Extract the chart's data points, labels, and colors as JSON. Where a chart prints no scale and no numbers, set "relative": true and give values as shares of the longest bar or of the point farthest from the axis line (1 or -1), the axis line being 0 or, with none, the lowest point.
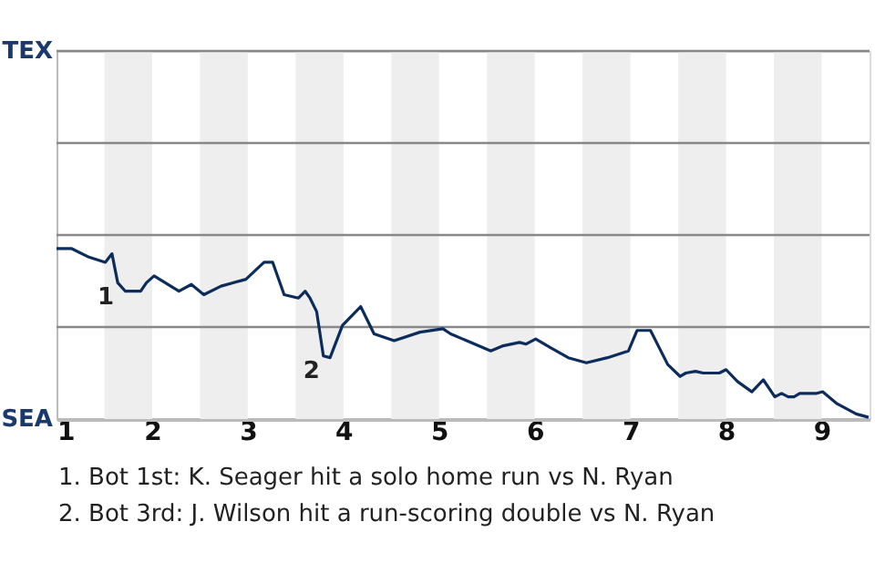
{
  "chart_data": {
    "type": "line",
    "relative": true,
    "x": [
      1.0,
      1.16,
      1.34,
      1.51,
      1.58,
      1.64,
      1.72,
      1.88,
      1.94,
      2.02,
      2.28,
      2.41,
      2.54,
      2.72,
      2.98,
      3.17,
      3.26,
      3.38,
      3.53,
      3.6,
      3.65,
      3.72,
      3.79,
      3.86,
      3.99,
      4.18,
      4.32,
      4.53,
      4.8,
      5.04,
      5.12,
      5.54,
      5.67,
      5.84,
      5.91,
      6.01,
      6.16,
      6.35,
      6.54,
      6.76,
      6.98,
      7.07,
      7.21,
      7.39,
      7.52,
      7.58,
      7.68,
      7.76,
      7.93,
      8.0,
      8.12,
      8.27,
      8.39,
      8.51,
      8.58,
      8.65,
      8.71,
      8.77,
      8.94,
      9.01,
      9.16,
      9.36,
      9.49
    ],
    "series": [
      {
        "color": "#0c2c5c",
        "values": [
          1,
          1,
          0.95,
          0.92,
          0.97,
          0.8,
          0.75,
          0.75,
          0.8,
          0.84,
          0.75,
          0.79,
          0.73,
          0.78,
          0.82,
          0.92,
          0.92,
          0.73,
          0.71,
          0.75,
          0.71,
          0.63,
          0.37,
          0.36,
          0.55,
          0.66,
          0.5,
          0.46,
          0.51,
          0.53,
          0.5,
          0.4,
          0.43,
          0.45,
          0.44,
          0.47,
          0.42,
          0.36,
          0.33,
          0.36,
          0.4,
          0.52,
          0.52,
          0.32,
          0.25,
          0.27,
          0.28,
          0.27,
          0.27,
          0.29,
          0.22,
          0.16,
          0.23,
          0.13,
          0.15,
          0.13,
          0.13,
          0.15,
          0.15,
          0.16,
          0.09,
          0.03,
          0.01
        ]
      }
    ],
    "xlim": [
      1,
      9.5
    ],
    "xticks": [
      1,
      2,
      3,
      4,
      5,
      6,
      7,
      8,
      9
    ],
    "ref_lines": [
      {
        "axis": "y",
        "value": 0.54,
        "color": "#888888"
      },
      {
        "axis": "y",
        "value": 1.08,
        "color": "#888888"
      },
      {
        "axis": "y",
        "value": 1.62,
        "color": "#888888"
      },
      {
        "axis": "y",
        "value": 2.16,
        "color": "#888888"
      }
    ],
    "marker": "none",
    "line_style": "solid",
    "bands": [
      {
        "axis": "x",
        "from": 1.5,
        "to": 2,
        "color": "#eeeeee"
      },
      {
        "axis": "x",
        "from": 2.5,
        "to": 3,
        "color": "#eeeeee"
      },
      {
        "axis": "x",
        "from": 3.5,
        "to": 4,
        "color": "#eeeeee"
      },
      {
        "axis": "x",
        "from": 4.5,
        "to": 5,
        "color": "#eeeeee"
      },
      {
        "axis": "x",
        "from": 5.5,
        "to": 6,
        "color": "#eeeeee"
      },
      {
        "axis": "x",
        "from": 6.5,
        "to": 7,
        "color": "#eeeeee"
      },
      {
        "axis": "x",
        "from": 7.5,
        "to": 8,
        "color": "#eeeeee"
      },
      {
        "axis": "x",
        "from": 8.5,
        "to": 9,
        "color": "#eeeeee"
      }
    ],
    "annotations": [
      "TEX",
      "SEA",
      {
        "text": "1",
        "x": 1.64,
        "y": 0.8
      },
      {
        "text": "2",
        "x": 3.79,
        "y": 0.37
      },
      "1. Bot 1st: K. Seager hit a solo home run vs N. Ryan",
      "2. Bot 3rd: J. Wilson hit a run-scoring double vs N. Ryan"
    ]
  }
}
